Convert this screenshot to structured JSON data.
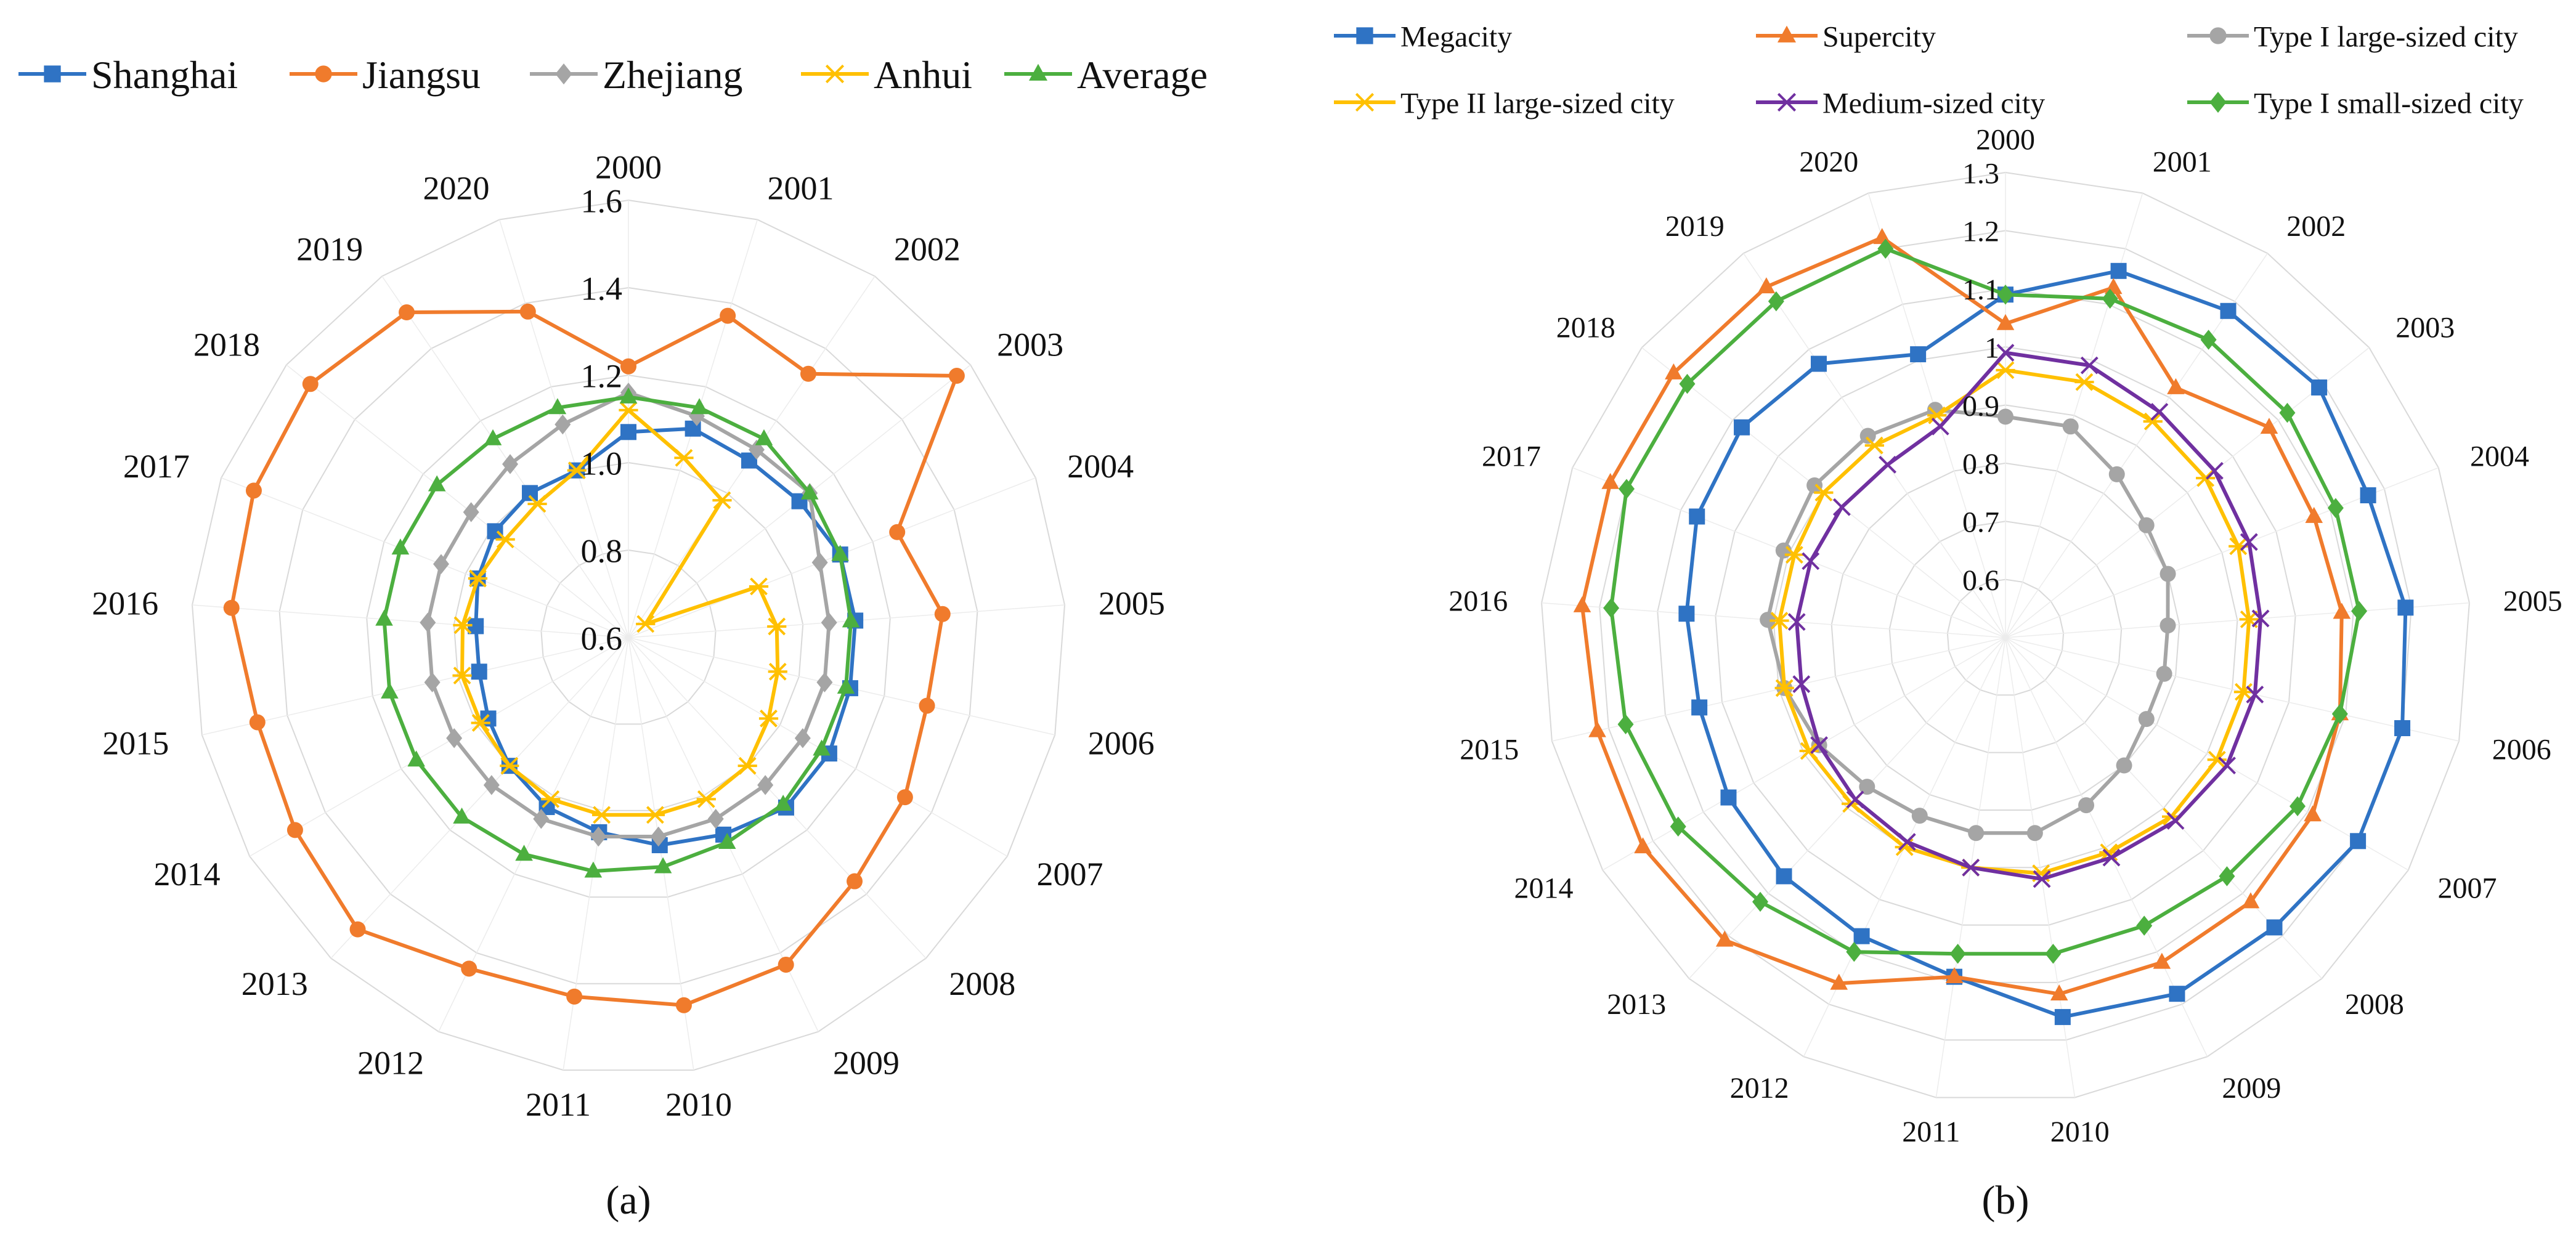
{
  "chart_data": [
    {
      "type": "radar",
      "panel_label": "(a)",
      "axis_ticks": [
        "0.6",
        "0.8",
        "1.0",
        "1.2",
        "1.4",
        "1.6"
      ],
      "rmin": 0.6,
      "rmax": 1.6,
      "categories": [
        "2000",
        "2001",
        "2002",
        "2003",
        "2004",
        "2005",
        "2006",
        "2007",
        "2008",
        "2009",
        "2010",
        "2011",
        "2012",
        "2013",
        "2014",
        "2015",
        "2016",
        "2017",
        "2018",
        "2019",
        "2020"
      ],
      "legend": [
        "Shanghai",
        "Jiangsu",
        "Zhejiang",
        "Anhui",
        "Average"
      ],
      "series": [
        {
          "name": "Shanghai",
          "color": "#2f73c4",
          "marker": "square",
          "values": [
            1.07,
            1.1,
            1.09,
            1.1,
            1.12,
            1.12,
            1.12,
            1.13,
            1.13,
            1.1,
            1.08,
            1.05,
            1.03,
            1.0,
            0.97,
            0.95,
            0.95,
            0.97,
            0.99,
            1.0,
            1.0
          ]
        },
        {
          "name": "Jiangsu",
          "color": "#f07b2c",
          "marker": "circle",
          "values": [
            1.22,
            1.37,
            1.33,
            1.56,
            1.26,
            1.32,
            1.3,
            1.33,
            1.36,
            1.43,
            1.45,
            1.43,
            1.44,
            1.51,
            1.48,
            1.47,
            1.51,
            1.52,
            1.53,
            1.5,
            1.38
          ]
        },
        {
          "name": "Zhejiang",
          "color": "#a5a5a5",
          "marker": "diamond",
          "values": [
            1.16,
            1.13,
            1.12,
            1.13,
            1.07,
            1.06,
            1.06,
            1.06,
            1.06,
            1.06,
            1.06,
            1.06,
            1.06,
            1.06,
            1.06,
            1.06,
            1.06,
            1.06,
            1.06,
            1.08,
            1.11
          ]
        },
        {
          "name": "Anhui",
          "color": "#ffc000",
          "marker": "asterisk",
          "values": [
            1.12,
            1.03,
            0.98,
            0.65,
            0.92,
            0.94,
            0.95,
            0.97,
            1.0,
            1.01,
            1.01,
            1.01,
            1.01,
            1.0,
            0.99,
            0.99,
            0.98,
            0.97,
            0.96,
            0.97,
            1.0
          ]
        },
        {
          "name": "Average",
          "color": "#4caf3f",
          "marker": "triangle",
          "values": [
            1.15,
            1.15,
            1.15,
            1.13,
            1.12,
            1.11,
            1.11,
            1.11,
            1.12,
            1.12,
            1.13,
            1.14,
            1.15,
            1.16,
            1.16,
            1.16,
            1.16,
            1.16,
            1.16,
            1.15,
            1.15
          ]
        }
      ]
    },
    {
      "type": "radar",
      "panel_label": "(b)",
      "axis_ticks": [
        "0.6",
        "0.7",
        "0.8",
        "0.9",
        "1",
        "1.1",
        "1.2",
        "1.3"
      ],
      "rmin": 0.5,
      "rmax": 1.3,
      "categories": [
        "2000",
        "2001",
        "2002",
        "2003",
        "2004",
        "2005",
        "2006",
        "2007",
        "2008",
        "2009",
        "2010",
        "2011",
        "2012",
        "2013",
        "2014",
        "2015",
        "2016",
        "2017",
        "2018",
        "2019",
        "2020"
      ],
      "legend": [
        "Megacity",
        "Supercity",
        "Type I large-sized  city",
        "Type II  large-sized city",
        "Medium-sized city",
        "Type I small-sized city"
      ],
      "series": [
        {
          "name": "Megacity",
          "color": "#2f73c4",
          "marker": "square",
          "values": [
            1.09,
            1.16,
            1.18,
            1.19,
            1.17,
            1.19,
            1.2,
            1.2,
            1.18,
            1.18,
            1.16,
            1.09,
            1.07,
            1.06,
            1.05,
            1.04,
            1.05,
            1.07,
            1.08,
            1.07,
            1.01
          ]
        },
        {
          "name": "Supercity",
          "color": "#f07b2c",
          "marker": "triangle",
          "values": [
            1.04,
            1.13,
            1.02,
            1.08,
            1.07,
            1.08,
            1.09,
            1.11,
            1.12,
            1.12,
            1.12,
            1.09,
            1.16,
            1.21,
            1.22,
            1.22,
            1.23,
            1.23,
            1.23,
            1.23,
            1.22
          ]
        },
        {
          "name": "Type I large-sized  city",
          "color": "#a5a5a5",
          "marker": "circle",
          "values": [
            0.88,
            0.88,
            0.84,
            0.81,
            0.8,
            0.78,
            0.78,
            0.78,
            0.8,
            0.82,
            0.84,
            0.84,
            0.84,
            0.85,
            0.87,
            0.89,
            0.91,
            0.91,
            0.92,
            0.92,
            0.91
          ]
        },
        {
          "name": "Type II  large-sized city",
          "color": "#ffc000",
          "marker": "asterisk",
          "values": [
            0.96,
            0.96,
            0.95,
            0.94,
            0.93,
            0.92,
            0.92,
            0.92,
            0.92,
            0.91,
            0.91,
            0.9,
            0.9,
            0.89,
            0.89,
            0.89,
            0.89,
            0.89,
            0.9,
            0.9,
            0.9
          ]
        },
        {
          "name": "Medium-sized city",
          "color": "#7030a0",
          "marker": "x",
          "values": [
            0.99,
            0.99,
            0.97,
            0.96,
            0.95,
            0.94,
            0.94,
            0.94,
            0.93,
            0.92,
            0.92,
            0.9,
            0.89,
            0.88,
            0.87,
            0.86,
            0.86,
            0.86,
            0.86,
            0.86,
            0.88
          ]
        },
        {
          "name": "Type I small-sized city",
          "color": "#4caf3f",
          "marker": "diamond",
          "values": [
            1.09,
            1.11,
            1.12,
            1.12,
            1.11,
            1.11,
            1.09,
            1.08,
            1.06,
            1.05,
            1.05,
            1.05,
            1.1,
            1.12,
            1.15,
            1.17,
            1.18,
            1.2,
            1.2,
            1.2,
            1.2
          ]
        }
      ]
    }
  ]
}
